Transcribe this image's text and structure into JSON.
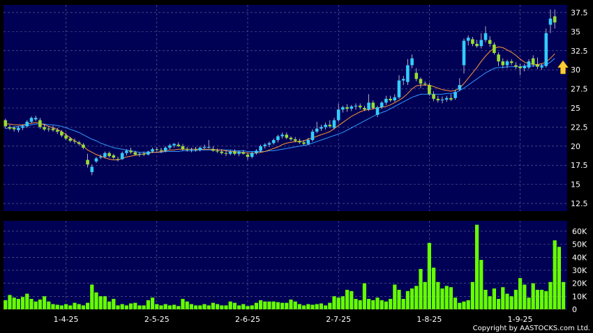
{
  "copyright": "Copyright by AASTOCKS.com Ltd.",
  "colors": {
    "background": "#000000",
    "panel": "#000055",
    "grid": "#6e6e9c",
    "up_candle": "#33ccff",
    "down_candle": "#99dd33",
    "ma_short": "#ff9933",
    "ma_long": "#3399ff",
    "volume": "#66ff00",
    "arrow": "#ffcc33"
  },
  "chart_data": [
    {
      "type": "candlestick",
      "title": "",
      "ylim": [
        11.5,
        38.5
      ],
      "yticks": [
        12.5,
        15,
        17.5,
        20,
        22.5,
        25,
        27.5,
        30,
        32.5,
        35,
        37.5
      ],
      "ytick_labels": [
        "12.5",
        "15",
        "17.5",
        "20",
        "22.5",
        "25",
        "27.5",
        "30",
        "32.5",
        "35",
        "37.5"
      ],
      "x_tick_labels": [
        "1-4-25",
        "2-5-25",
        "2-6-25",
        "2-7-25",
        "1-8-25",
        "1-9-25"
      ],
      "x_tick_index": [
        14,
        35,
        56,
        77,
        98,
        119
      ],
      "grid": true,
      "candles": [
        [
          22.6,
          23.6,
          22.3,
          23.4
        ],
        [
          22.5,
          22.8,
          22.1,
          22.3
        ],
        [
          22.4,
          22.6,
          21.9,
          22.2
        ],
        [
          22.1,
          22.6,
          21.8,
          22.4
        ],
        [
          22.4,
          22.8,
          22.1,
          22.6
        ],
        [
          22.6,
          23.4,
          22.4,
          23.2
        ],
        [
          23.2,
          23.9,
          23.0,
          23.7
        ],
        [
          23.7,
          24.0,
          23.3,
          23.5
        ],
        [
          23.4,
          23.7,
          22.3,
          22.5
        ],
        [
          22.5,
          22.9,
          22.0,
          22.2
        ],
        [
          22.2,
          22.6,
          21.9,
          22.3
        ],
        [
          22.3,
          22.7,
          21.9,
          22.1
        ],
        [
          22.1,
          22.4,
          21.6,
          21.9
        ],
        [
          21.9,
          22.1,
          21.2,
          21.4
        ],
        [
          21.4,
          21.7,
          20.8,
          21.0
        ],
        [
          21.0,
          21.2,
          20.5,
          20.7
        ],
        [
          20.7,
          21.0,
          20.3,
          20.6
        ],
        [
          20.5,
          20.7,
          20.1,
          20.3
        ],
        [
          20.2,
          20.4,
          19.6,
          19.8
        ],
        [
          18.2,
          19.0,
          17.2,
          17.6
        ],
        [
          17.3,
          17.6,
          16.2,
          16.6
        ],
        [
          18.0,
          18.6,
          17.8,
          18.4
        ],
        [
          18.5,
          18.9,
          18.3,
          18.6
        ],
        [
          18.6,
          19.3,
          18.4,
          19.1
        ],
        [
          19.1,
          19.3,
          18.5,
          18.7
        ],
        [
          18.8,
          19.0,
          18.3,
          18.5
        ],
        [
          18.3,
          18.6,
          18.0,
          18.2
        ],
        [
          18.3,
          19.3,
          18.2,
          19.1
        ],
        [
          19.1,
          19.6,
          18.8,
          19.4
        ],
        [
          19.4,
          19.8,
          19.0,
          19.2
        ],
        [
          19.2,
          19.4,
          18.8,
          18.9
        ],
        [
          18.9,
          19.2,
          18.6,
          19.0
        ],
        [
          19.0,
          19.3,
          18.7,
          18.9
        ],
        [
          18.9,
          19.4,
          18.8,
          19.3
        ],
        [
          19.3,
          19.8,
          19.1,
          19.6
        ],
        [
          19.6,
          19.9,
          19.3,
          19.5
        ],
        [
          19.5,
          19.8,
          19.1,
          19.4
        ],
        [
          19.4,
          20.0,
          19.2,
          19.8
        ],
        [
          19.8,
          20.3,
          19.6,
          20.1
        ],
        [
          20.1,
          20.4,
          19.8,
          20.3
        ],
        [
          20.2,
          20.5,
          19.9,
          20.0
        ],
        [
          20.0,
          20.3,
          19.4,
          19.6
        ],
        [
          19.6,
          19.9,
          19.3,
          19.5
        ],
        [
          19.5,
          19.8,
          19.2,
          19.6
        ],
        [
          19.6,
          19.9,
          19.3,
          19.5
        ],
        [
          19.5,
          20.0,
          19.3,
          19.8
        ],
        [
          19.8,
          20.2,
          19.6,
          19.9
        ],
        [
          19.9,
          20.8,
          19.7,
          19.9
        ],
        [
          19.6,
          20.0,
          19.3,
          19.4
        ],
        [
          19.4,
          19.7,
          19.1,
          19.3
        ],
        [
          19.3,
          19.6,
          18.9,
          19.1
        ],
        [
          19.1,
          19.4,
          18.7,
          19.0
        ],
        [
          19.0,
          19.5,
          18.8,
          19.3
        ],
        [
          19.3,
          19.6,
          18.8,
          19.0
        ],
        [
          19.0,
          19.4,
          18.7,
          19.3
        ],
        [
          19.2,
          19.5,
          18.9,
          19.0
        ],
        [
          18.9,
          19.1,
          18.2,
          18.6
        ],
        [
          18.6,
          19.3,
          18.4,
          19.1
        ],
        [
          19.1,
          19.6,
          18.9,
          19.4
        ],
        [
          19.4,
          20.2,
          19.2,
          20.0
        ],
        [
          20.0,
          20.4,
          19.7,
          20.2
        ],
        [
          20.2,
          20.6,
          19.9,
          20.4
        ],
        [
          20.4,
          21.0,
          20.2,
          20.8
        ],
        [
          20.8,
          21.5,
          20.5,
          21.3
        ],
        [
          21.3,
          21.8,
          21.0,
          21.5
        ],
        [
          21.5,
          21.8,
          20.9,
          21.1
        ],
        [
          21.1,
          21.3,
          20.7,
          20.9
        ],
        [
          20.9,
          21.2,
          20.5,
          20.7
        ],
        [
          20.7,
          21.0,
          20.3,
          20.5
        ],
        [
          20.5,
          20.8,
          20.1,
          20.3
        ],
        [
          20.3,
          21.1,
          20.1,
          20.8
        ],
        [
          20.8,
          22.2,
          20.6,
          21.9
        ],
        [
          21.9,
          23.2,
          21.7,
          22.3
        ],
        [
          22.3,
          22.8,
          22.0,
          22.5
        ],
        [
          22.5,
          23.1,
          22.2,
          22.8
        ],
        [
          22.8,
          23.4,
          22.4,
          22.6
        ],
        [
          22.4,
          23.7,
          22.2,
          23.4
        ],
        [
          23.4,
          25.6,
          23.2,
          24.8
        ],
        [
          24.8,
          25.3,
          24.4,
          25.1
        ],
        [
          25.1,
          25.5,
          24.5,
          24.9
        ],
        [
          24.9,
          25.4,
          24.6,
          25.2
        ],
        [
          25.2,
          25.6,
          24.8,
          25.3
        ],
        [
          25.3,
          25.6,
          24.8,
          25.1
        ],
        [
          25.0,
          25.3,
          24.6,
          24.8
        ],
        [
          24.8,
          26.8,
          24.6,
          25.7
        ],
        [
          25.7,
          26.0,
          24.8,
          25.0
        ],
        [
          24.1,
          25.3,
          23.8,
          25.1
        ],
        [
          25.1,
          25.9,
          24.9,
          25.7
        ],
        [
          25.7,
          26.6,
          25.4,
          26.2
        ],
        [
          26.2,
          26.6,
          25.8,
          26.0
        ],
        [
          26.0,
          26.8,
          25.8,
          26.4
        ],
        [
          26.4,
          29.3,
          26.2,
          28.6
        ],
        [
          28.6,
          29.2,
          28.0,
          28.8
        ],
        [
          28.4,
          31.4,
          28.0,
          30.6
        ],
        [
          30.6,
          32.0,
          30.2,
          31.5
        ],
        [
          29.6,
          30.2,
          28.5,
          28.8
        ],
        [
          28.8,
          29.0,
          27.6,
          28.2
        ],
        [
          28.2,
          28.5,
          27.9,
          28.1
        ],
        [
          28.0,
          28.3,
          26.6,
          26.8
        ],
        [
          26.8,
          27.2,
          25.9,
          26.2
        ],
        [
          26.2,
          26.6,
          25.7,
          26.0
        ],
        [
          26.0,
          26.5,
          25.6,
          26.1
        ],
        [
          26.1,
          26.6,
          25.8,
          26.3
        ],
        [
          26.3,
          26.8,
          25.9,
          26.1
        ],
        [
          26.3,
          27.4,
          26.1,
          27.1
        ],
        [
          27.4,
          28.9,
          27.2,
          28.0
        ],
        [
          30.6,
          34.1,
          29.5,
          33.8
        ],
        [
          33.8,
          34.5,
          33.2,
          34.2
        ],
        [
          34.0,
          34.3,
          33.1,
          33.4
        ],
        [
          33.4,
          33.9,
          32.9,
          33.1
        ],
        [
          33.1,
          34.8,
          32.8,
          33.9
        ],
        [
          33.9,
          35.7,
          33.6,
          34.8
        ],
        [
          33.9,
          34.4,
          33.0,
          33.4
        ],
        [
          33.3,
          33.6,
          32.0,
          32.2
        ],
        [
          32.0,
          32.3,
          30.5,
          31.1
        ],
        [
          31.1,
          31.5,
          30.2,
          30.6
        ],
        [
          30.6,
          31.3,
          30.2,
          31.1
        ],
        [
          31.1,
          31.4,
          30.6,
          30.9
        ],
        [
          30.6,
          31.0,
          30.1,
          30.4
        ],
        [
          30.4,
          30.8,
          29.3,
          30.2
        ],
        [
          30.2,
          30.8,
          29.8,
          30.5
        ],
        [
          30.3,
          31.4,
          30.1,
          31.1
        ],
        [
          31.5,
          31.9,
          30.4,
          30.7
        ],
        [
          30.7,
          31.6,
          30.1,
          30.4
        ],
        [
          30.3,
          30.8,
          30.0,
          30.5
        ],
        [
          30.5,
          35.4,
          30.3,
          34.8
        ],
        [
          35.9,
          37.9,
          34.8,
          36.7
        ],
        [
          37.0,
          37.9,
          35.4,
          36.2
        ]
      ],
      "candle_direction": [
        "down",
        "down",
        "down",
        "up",
        "up",
        "up",
        "up",
        "up",
        "down",
        "down",
        "down",
        "down",
        "down",
        "down",
        "down",
        "down",
        "down",
        "down",
        "down",
        "down",
        "up",
        "up",
        "up",
        "up",
        "down",
        "down",
        "down",
        "up",
        "up",
        "down",
        "down",
        "up",
        "down",
        "up",
        "up",
        "down",
        "down",
        "up",
        "up",
        "up",
        "down",
        "down",
        "down",
        "up",
        "down",
        "up",
        "up",
        "up",
        "down",
        "down",
        "down",
        "down",
        "up",
        "down",
        "up",
        "down",
        "down",
        "up",
        "up",
        "up",
        "up",
        "up",
        "up",
        "up",
        "up",
        "down",
        "down",
        "down",
        "down",
        "down",
        "up",
        "up",
        "up",
        "up",
        "up",
        "down",
        "up",
        "up",
        "up",
        "down",
        "up",
        "up",
        "down",
        "down",
        "up",
        "down",
        "up",
        "up",
        "up",
        "down",
        "up",
        "up",
        "up",
        "up",
        "up",
        "down",
        "down",
        "down",
        "down",
        "down",
        "down",
        "up",
        "up",
        "down",
        "up",
        "up",
        "up",
        "up",
        "down",
        "down",
        "up",
        "up",
        "down",
        "down",
        "down",
        "down",
        "up",
        "down",
        "down",
        "down",
        "up",
        "up",
        "down",
        "down",
        "up",
        "up",
        "up",
        "down"
      ],
      "ma_short": [
        22.9,
        22.9,
        22.8,
        22.8,
        22.8,
        22.9,
        23.0,
        23.1,
        23.0,
        22.8,
        22.6,
        22.4,
        22.2,
        21.9,
        21.5,
        21.1,
        20.7,
        20.4,
        20.0,
        19.5,
        19.2,
        18.9,
        18.7,
        18.5,
        18.3,
        18.2,
        18.2,
        18.4,
        18.6,
        18.7,
        18.8,
        18.9,
        19.0,
        19.1,
        19.2,
        19.2,
        19.3,
        19.4,
        19.5,
        19.5,
        19.6,
        19.6,
        19.6,
        19.6,
        19.6,
        19.6,
        19.6,
        19.6,
        19.6,
        19.5,
        19.5,
        19.4,
        19.3,
        19.3,
        19.2,
        19.2,
        19.1,
        19.1,
        19.1,
        19.2,
        19.3,
        19.5,
        19.7,
        19.9,
        20.2,
        20.4,
        20.5,
        20.6,
        20.6,
        20.7,
        20.9,
        21.1,
        21.3,
        21.5,
        21.7,
        21.9,
        22.3,
        22.7,
        23.1,
        23.5,
        23.9,
        24.2,
        24.5,
        24.7,
        24.8,
        24.9,
        25.0,
        25.1,
        25.2,
        25.4,
        25.7,
        26.0,
        26.4,
        26.9,
        27.5,
        27.9,
        28.0,
        28.0,
        28.0,
        27.8,
        27.6,
        27.4,
        27.3,
        27.2,
        27.3,
        27.6,
        28.2,
        28.9,
        29.6,
        30.3,
        31.1,
        31.8,
        32.4,
        32.8,
        33.0,
        32.9,
        32.6,
        32.3,
        31.9,
        31.4,
        31.0,
        30.8,
        30.7,
        30.7,
        30.8,
        31.0,
        31.5,
        32.1
      ],
      "ma_long": [
        22.3,
        22.4,
        22.5,
        22.6,
        22.7,
        22.7,
        22.8,
        22.9,
        22.9,
        22.9,
        22.8,
        22.8,
        22.7,
        22.6,
        22.4,
        22.2,
        22.0,
        21.8,
        21.5,
        21.2,
        20.9,
        20.7,
        20.4,
        20.2,
        20.0,
        19.8,
        19.7,
        19.6,
        19.5,
        19.4,
        19.3,
        19.2,
        19.2,
        19.2,
        19.2,
        19.2,
        19.2,
        19.3,
        19.3,
        19.3,
        19.3,
        19.4,
        19.4,
        19.4,
        19.4,
        19.5,
        19.5,
        19.5,
        19.5,
        19.5,
        19.5,
        19.5,
        19.5,
        19.4,
        19.4,
        19.4,
        19.3,
        19.3,
        19.3,
        19.3,
        19.3,
        19.4,
        19.4,
        19.5,
        19.6,
        19.7,
        19.8,
        19.9,
        20.0,
        20.1,
        20.2,
        20.4,
        20.6,
        20.8,
        21.0,
        21.2,
        21.4,
        21.6,
        21.8,
        22.1,
        22.4,
        22.7,
        23.0,
        23.3,
        23.6,
        23.9,
        24.2,
        24.4,
        24.6,
        24.9,
        25.2,
        25.5,
        25.8,
        26.1,
        26.4,
        26.6,
        26.8,
        26.8,
        26.8,
        26.8,
        26.8,
        26.8,
        26.9,
        26.9,
        27.0,
        27.3,
        27.6,
        28.0,
        28.4,
        28.8,
        29.2,
        29.6,
        29.9,
        30.2,
        30.3,
        30.3,
        30.4,
        30.4,
        30.4,
        30.4,
        30.5,
        30.5,
        30.5,
        30.6,
        30.6,
        30.7,
        31.0,
        31.5
      ]
    },
    {
      "type": "bar",
      "title": "",
      "ylabel": "",
      "ylim": [
        0,
        68000
      ],
      "yticks": [
        0,
        10000,
        20000,
        30000,
        40000,
        50000,
        60000
      ],
      "ytick_labels": [
        "0",
        "10K",
        "20K",
        "30K",
        "40K",
        "50K",
        "60K"
      ],
      "grid": true,
      "values": [
        7000,
        11000,
        9000,
        8000,
        9500,
        12000,
        8000,
        6000,
        7500,
        10000,
        6000,
        4000,
        3500,
        3000,
        4000,
        3000,
        5000,
        4000,
        3000,
        5000,
        19000,
        13000,
        10000,
        10000,
        6000,
        8000,
        3000,
        4000,
        3000,
        4500,
        5000,
        3000,
        3000,
        7000,
        9000,
        4000,
        3000,
        4000,
        3000,
        3500,
        2500,
        8000,
        6000,
        4000,
        3000,
        3000,
        4000,
        3000,
        5000,
        4000,
        3000,
        3000,
        6000,
        5000,
        3000,
        4000,
        2500,
        3000,
        5000,
        7000,
        6000,
        6000,
        6000,
        5500,
        5000,
        5000,
        7500,
        6000,
        4000,
        3000,
        4000,
        3500,
        4000,
        4500,
        3000,
        5000,
        10000,
        9000,
        10000,
        15000,
        14000,
        8000,
        7000,
        20000,
        8000,
        7000,
        9000,
        7000,
        6000,
        8000,
        19000,
        15000,
        8000,
        14000,
        16000,
        18000,
        31000,
        21000,
        51000,
        32000,
        21000,
        16000,
        18000,
        17000,
        9000,
        5000,
        6000,
        7000,
        21000,
        65000,
        38000,
        15000,
        10000,
        16000,
        8000,
        17000,
        12000,
        10000,
        15000,
        24000,
        19000,
        9000,
        20000,
        15000,
        15000,
        14000,
        21000,
        53000,
        48000,
        21000
      ]
    }
  ]
}
